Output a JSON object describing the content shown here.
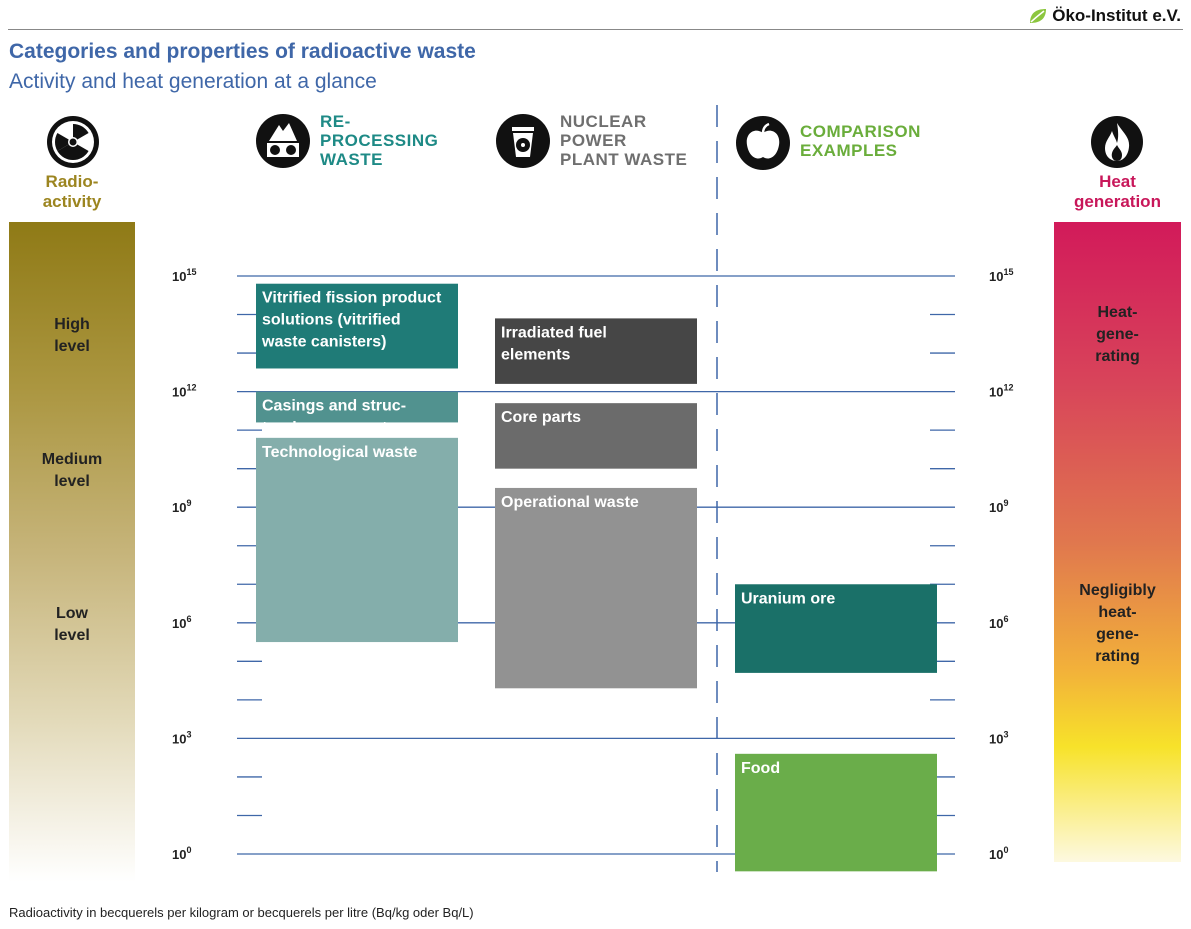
{
  "brand": {
    "name": "Öko-Institut e.V.",
    "leaf_color": "#8cc63f"
  },
  "title": "Categories and properties of radioactive waste",
  "subtitle": "Activity and heat generation at a glance",
  "columns": {
    "radioactivity": {
      "label_line1": "Radio-",
      "label_line2": "activity",
      "icon": "radiation-icon",
      "color": "#9c8520"
    },
    "reprocessing": {
      "label_lines": [
        "RE-",
        "PROCESSING",
        "WASTE"
      ],
      "icon": "reprocessing-waste-icon",
      "color": "#1e8a86"
    },
    "npp": {
      "label_lines": [
        "NUCLEAR",
        "POWER",
        "PLANT WASTE"
      ],
      "icon": "waste-bin-icon",
      "color": "#6f6f6f"
    },
    "comparison": {
      "label_lines": [
        "COMPARISON",
        "EXAMPLES"
      ],
      "icon": "apple-icon",
      "color": "#6aad3b"
    },
    "heat": {
      "label_line1": "Heat",
      "label_line2": "generation",
      "icon": "flame-icon",
      "color": "#c8175a"
    }
  },
  "radio_levels": [
    {
      "line1": "High",
      "line2": "level"
    },
    {
      "line1": "Medium",
      "line2": "level"
    },
    {
      "line1": "Low",
      "line2": "level"
    }
  ],
  "heat_levels": [
    {
      "lines": [
        "Heat-",
        "gene-",
        "rating"
      ]
    },
    {
      "lines": [
        "Negligibly",
        "heat-",
        "gene-",
        "rating"
      ]
    }
  ],
  "footer": "Radioactivity in becquerels per kilogram or becquerels per litre (Bq/kg oder Bq/L)",
  "chart_data": {
    "type": "range-bar",
    "scale": "log10",
    "ylim": [
      0,
      15
    ],
    "ticks": [
      {
        "base": "10",
        "exp": "15",
        "value": 15
      },
      {
        "base": "10",
        "exp": "12",
        "value": 12
      },
      {
        "base": "10",
        "exp": "9",
        "value": 9
      },
      {
        "base": "10",
        "exp": "6",
        "value": 6
      },
      {
        "base": "10",
        "exp": "3",
        "value": 3
      },
      {
        "base": "10",
        "exp": "0",
        "value": 0
      }
    ],
    "minor_ticks": [
      14,
      13,
      11,
      10,
      8,
      7,
      5,
      4,
      2,
      1
    ],
    "columns": [
      "Reprocessing waste",
      "Nuclear power plant waste",
      "Comparison examples"
    ],
    "series": [
      {
        "column": 0,
        "lines": [
          "Vitrified fission product",
          "solutions (vitrified",
          "waste canisters)"
        ],
        "low": 12.6,
        "high": 14.8,
        "color": "#1f7b77"
      },
      {
        "column": 0,
        "lines": [
          "Casings and struc-",
          "tural components"
        ],
        "low": 11.2,
        "high": 12.0,
        "color": "#51928f"
      },
      {
        "column": 0,
        "lines": [
          "Technological waste"
        ],
        "low": 5.5,
        "high": 10.8,
        "color": "#84aeab"
      },
      {
        "column": 1,
        "lines": [
          "Irradiated fuel",
          "elements"
        ],
        "low": 12.2,
        "high": 13.9,
        "color": "#464646"
      },
      {
        "column": 1,
        "lines": [
          "Core parts"
        ],
        "low": 10.0,
        "high": 11.7,
        "color": "#6b6b6b"
      },
      {
        "column": 1,
        "lines": [
          "Operational waste"
        ],
        "low": 4.3,
        "high": 9.5,
        "color": "#929292"
      },
      {
        "column": 2,
        "lines": [
          "Uranium ore"
        ],
        "low": 4.7,
        "high": 7.0,
        "color": "#1a7068"
      },
      {
        "column": 2,
        "lines": [
          "Food"
        ],
        "low": -0.45,
        "high": 2.6,
        "color": "#6aad4a"
      }
    ]
  }
}
